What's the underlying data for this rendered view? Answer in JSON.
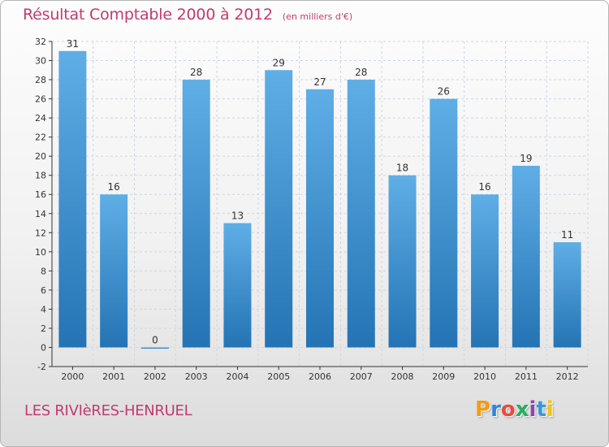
{
  "header": {
    "title": "Résultat Comptable 2000 à 2012",
    "unit": "(en milliers d'€)"
  },
  "footer": {
    "commune": "LES RIVIèRES-HENRUEL",
    "logo_letters": [
      "P",
      "r",
      "o",
      "x",
      "i",
      "t",
      "i"
    ]
  },
  "colors": {
    "title": "#c23a6e",
    "bar_top": "#5faee6",
    "bar_bottom": "#2474b5",
    "grid": "#cfd6e0",
    "axis": "#333333"
  },
  "chart_data": {
    "type": "bar",
    "title": "Résultat Comptable 2000 à 2012",
    "subtitle": "(en milliers d'€)",
    "xlabel": "",
    "ylabel": "",
    "categories": [
      "2000",
      "2001",
      "2002",
      "2003",
      "2004",
      "2005",
      "2006",
      "2007",
      "2008",
      "2009",
      "2010",
      "2011",
      "2012"
    ],
    "values": [
      31,
      16,
      0,
      28,
      13,
      29,
      27,
      28,
      18,
      26,
      16,
      19,
      11
    ],
    "ylim": [
      -2,
      32
    ],
    "yticks": [
      -2,
      0,
      2,
      4,
      6,
      8,
      10,
      12,
      14,
      16,
      18,
      20,
      22,
      24,
      26,
      28,
      30,
      32
    ],
    "grid": true,
    "data_labels": true
  }
}
